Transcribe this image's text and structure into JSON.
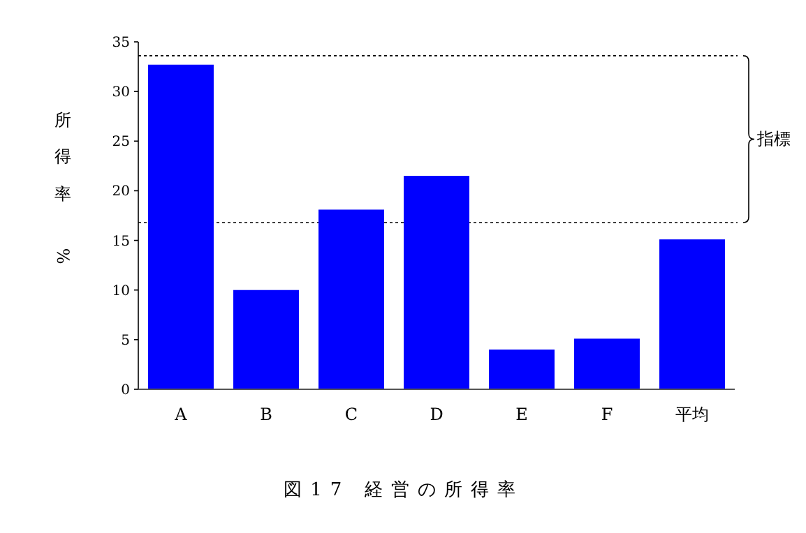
{
  "chart_data": {
    "type": "bar",
    "title": "図17 経営の所得率",
    "ylabel": "所得率 %",
    "categories": [
      "A",
      "B",
      "C",
      "D",
      "E",
      "F",
      "平均"
    ],
    "values": [
      32.7,
      10.0,
      18.1,
      21.5,
      4.0,
      5.1,
      15.1
    ],
    "color": "#0000ff",
    "ylim": [
      0,
      35
    ],
    "yticks": [
      0,
      5,
      10,
      15,
      20,
      25,
      30,
      35
    ],
    "ref_lines": [
      {
        "axis": "y",
        "value": 33.6,
        "line_style": "dotted"
      },
      {
        "axis": "y",
        "value": 16.8,
        "line_style": "dotted"
      }
    ],
    "annotations": [
      "指標"
    ]
  }
}
